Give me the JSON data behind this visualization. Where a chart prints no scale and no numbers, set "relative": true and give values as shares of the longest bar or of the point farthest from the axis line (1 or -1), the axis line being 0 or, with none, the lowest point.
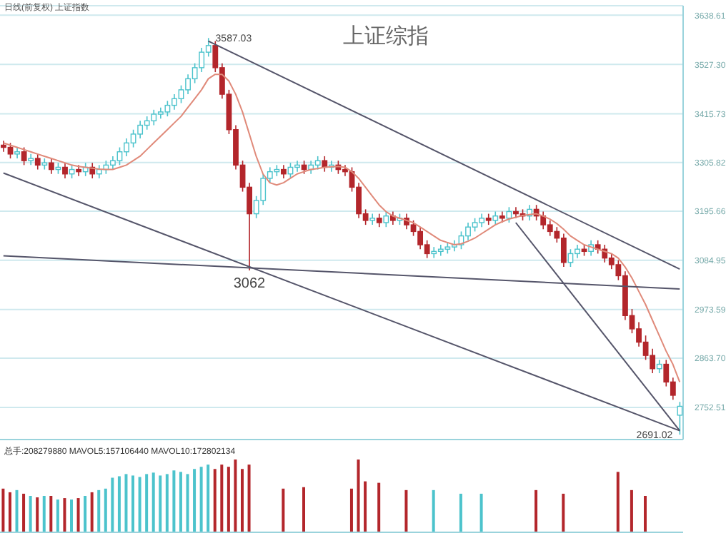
{
  "chart_data": [
    {
      "type": "candlestick",
      "title": "上证综指",
      "subtitle": "日线(前复权) 上证指数",
      "categories": [
        null,
        null,
        null,
        null,
        null,
        null,
        null,
        null,
        null,
        null,
        null,
        null,
        null,
        null,
        null,
        null,
        null,
        null,
        null,
        null,
        null,
        null,
        null,
        null,
        null,
        null,
        null,
        null,
        null,
        null,
        null,
        null,
        null,
        null,
        null,
        null,
        null,
        null,
        null,
        null,
        null,
        null,
        null,
        null,
        null,
        null,
        null,
        null,
        null,
        null,
        null,
        null,
        null,
        null,
        null,
        null,
        null,
        null,
        null,
        null,
        null,
        null,
        null,
        null,
        null,
        null,
        null,
        null,
        null,
        null,
        null,
        null,
        null,
        null,
        null,
        null,
        null,
        null,
        null,
        null,
        null,
        null,
        null,
        null,
        null,
        null,
        null,
        null,
        null,
        null,
        null,
        null,
        null,
        null,
        null,
        null,
        null,
        null,
        null,
        null
      ],
      "ohlc": [
        [
          3345,
          3355,
          3330,
          3340
        ],
        [
          3340,
          3350,
          3315,
          3325
        ],
        [
          3325,
          3340,
          3315,
          3330
        ],
        [
          3330,
          3340,
          3300,
          3310
        ],
        [
          3310,
          3325,
          3300,
          3315
        ],
        [
          3315,
          3325,
          3290,
          3300
        ],
        [
          3300,
          3315,
          3290,
          3305
        ],
        [
          3305,
          3315,
          3280,
          3290
        ],
        [
          3290,
          3305,
          3280,
          3295
        ],
        [
          3295,
          3305,
          3270,
          3280
        ],
        [
          3280,
          3300,
          3270,
          3290
        ],
        [
          3290,
          3300,
          3275,
          3285
        ],
        [
          3285,
          3305,
          3275,
          3295
        ],
        [
          3295,
          3305,
          3270,
          3280
        ],
        [
          3280,
          3300,
          3270,
          3290
        ],
        [
          3290,
          3310,
          3280,
          3300
        ],
        [
          3300,
          3320,
          3290,
          3310
        ],
        [
          3310,
          3340,
          3300,
          3330
        ],
        [
          3330,
          3360,
          3320,
          3350
        ],
        [
          3350,
          3380,
          3340,
          3370
        ],
        [
          3370,
          3400,
          3360,
          3390
        ],
        [
          3390,
          3410,
          3380,
          3400
        ],
        [
          3400,
          3425,
          3390,
          3415
        ],
        [
          3415,
          3430,
          3405,
          3420
        ],
        [
          3420,
          3445,
          3410,
          3435
        ],
        [
          3435,
          3460,
          3425,
          3450
        ],
        [
          3450,
          3480,
          3440,
          3470
        ],
        [
          3470,
          3505,
          3460,
          3495
        ],
        [
          3495,
          3530,
          3485,
          3520
        ],
        [
          3520,
          3565,
          3510,
          3555
        ],
        [
          3555,
          3587.03,
          3545,
          3570
        ],
        [
          3570,
          3580,
          3510,
          3520
        ],
        [
          3520,
          3530,
          3450,
          3460
        ],
        [
          3460,
          3470,
          3370,
          3380
        ],
        [
          3380,
          3390,
          3290,
          3300
        ],
        [
          3300,
          3310,
          3240,
          3250
        ],
        [
          3250,
          3260,
          3062,
          3190
        ],
        [
          3190,
          3230,
          3180,
          3220
        ],
        [
          3220,
          3280,
          3210,
          3270
        ],
        [
          3270,
          3295,
          3260,
          3285
        ],
        [
          3285,
          3300,
          3275,
          3290
        ],
        [
          3290,
          3300,
          3270,
          3280
        ],
        [
          3280,
          3305,
          3270,
          3295
        ],
        [
          3295,
          3310,
          3285,
          3300
        ],
        [
          3300,
          3310,
          3280,
          3290
        ],
        [
          3290,
          3310,
          3280,
          3300
        ],
        [
          3300,
          3320,
          3290,
          3310
        ],
        [
          3310,
          3320,
          3285,
          3295
        ],
        [
          3295,
          3310,
          3285,
          3300
        ],
        [
          3300,
          3310,
          3280,
          3290
        ],
        [
          3290,
          3300,
          3275,
          3285
        ],
        [
          3285,
          3295,
          3240,
          3250
        ],
        [
          3250,
          3260,
          3180,
          3190
        ],
        [
          3190,
          3200,
          3165,
          3175
        ],
        [
          3175,
          3190,
          3165,
          3180
        ],
        [
          3180,
          3190,
          3160,
          3170
        ],
        [
          3170,
          3195,
          3160,
          3185
        ],
        [
          3185,
          3195,
          3165,
          3175
        ],
        [
          3175,
          3190,
          3165,
          3180
        ],
        [
          3180,
          3190,
          3155,
          3165
        ],
        [
          3165,
          3175,
          3140,
          3150
        ],
        [
          3150,
          3160,
          3110,
          3120
        ],
        [
          3120,
          3130,
          3090,
          3100
        ],
        [
          3100,
          3115,
          3090,
          3105
        ],
        [
          3105,
          3120,
          3095,
          3110
        ],
        [
          3110,
          3125,
          3100,
          3115
        ],
        [
          3115,
          3130,
          3105,
          3120
        ],
        [
          3120,
          3150,
          3110,
          3140
        ],
        [
          3140,
          3170,
          3130,
          3160
        ],
        [
          3160,
          3180,
          3150,
          3170
        ],
        [
          3170,
          3190,
          3160,
          3180
        ],
        [
          3180,
          3190,
          3165,
          3175
        ],
        [
          3175,
          3195,
          3165,
          3185
        ],
        [
          3185,
          3195,
          3170,
          3180
        ],
        [
          3180,
          3205,
          3170,
          3195
        ],
        [
          3195,
          3205,
          3180,
          3190
        ],
        [
          3190,
          3200,
          3175,
          3185
        ],
        [
          3185,
          3210,
          3175,
          3200
        ],
        [
          3200,
          3210,
          3175,
          3185
        ],
        [
          3185,
          3195,
          3155,
          3165
        ],
        [
          3165,
          3175,
          3140,
          3150
        ],
        [
          3150,
          3160,
          3125,
          3135
        ],
        [
          3135,
          3145,
          3070,
          3080
        ],
        [
          3080,
          3110,
          3070,
          3100
        ],
        [
          3100,
          3120,
          3090,
          3110
        ],
        [
          3110,
          3120,
          3095,
          3105
        ],
        [
          3105,
          3130,
          3095,
          3120
        ],
        [
          3120,
          3130,
          3100,
          3110
        ],
        [
          3110,
          3120,
          3080,
          3090
        ],
        [
          3090,
          3100,
          3065,
          3075
        ],
        [
          3075,
          3085,
          3040,
          3050
        ],
        [
          3050,
          3060,
          2950,
          2960
        ],
        [
          2960,
          2975,
          2920,
          2930
        ],
        [
          2930,
          2945,
          2890,
          2900
        ],
        [
          2900,
          2915,
          2860,
          2870
        ],
        [
          2870,
          2885,
          2830,
          2840
        ],
        [
          2840,
          2860,
          2830,
          2850
        ],
        [
          2850,
          2860,
          2800,
          2810
        ],
        [
          2810,
          2820,
          2770,
          2780
        ],
        [
          2735,
          2765,
          2691.02,
          2755
        ]
      ],
      "colors": [
        "#b3262b",
        "#b3262b",
        "#4cc3cc",
        "#b3262b",
        "#4cc3cc",
        "#b3262b",
        "#4cc3cc",
        "#b3262b",
        "#4cc3cc",
        "#b3262b",
        "#4cc3cc",
        "#b3262b",
        "#4cc3cc",
        "#b3262b",
        "#4cc3cc",
        "#4cc3cc",
        "#4cc3cc",
        "#4cc3cc",
        "#4cc3cc",
        "#4cc3cc",
        "#4cc3cc",
        "#4cc3cc",
        "#4cc3cc",
        "#4cc3cc",
        "#4cc3cc",
        "#4cc3cc",
        "#4cc3cc",
        "#4cc3cc",
        "#4cc3cc",
        "#4cc3cc",
        "#4cc3cc",
        "#b3262b",
        "#b3262b",
        "#b3262b",
        "#b3262b",
        "#b3262b",
        "#b3262b",
        "#4cc3cc",
        "#4cc3cc",
        "#4cc3cc",
        "#4cc3cc",
        "#b3262b",
        "#4cc3cc",
        "#4cc3cc",
        "#b3262b",
        "#4cc3cc",
        "#4cc3cc",
        "#b3262b",
        "#4cc3cc",
        "#b3262b",
        "#b3262b",
        "#b3262b",
        "#b3262b",
        "#b3262b",
        "#4cc3cc",
        "#b3262b",
        "#4cc3cc",
        "#b3262b",
        "#4cc3cc",
        "#b3262b",
        "#b3262b",
        "#b3262b",
        "#b3262b",
        "#4cc3cc",
        "#4cc3cc",
        "#4cc3cc",
        "#4cc3cc",
        "#4cc3cc",
        "#4cc3cc",
        "#4cc3cc",
        "#4cc3cc",
        "#b3262b",
        "#4cc3cc",
        "#b3262b",
        "#4cc3cc",
        "#b3262b",
        "#b3262b",
        "#4cc3cc",
        "#b3262b",
        "#b3262b",
        "#b3262b",
        "#b3262b",
        "#b3262b",
        "#4cc3cc",
        "#4cc3cc",
        "#b3262b",
        "#4cc3cc",
        "#b3262b",
        "#b3262b",
        "#b3262b",
        "#b3262b",
        "#b3262b",
        "#b3262b",
        "#b3262b",
        "#b3262b",
        "#b3262b",
        "#4cc3cc",
        "#b3262b",
        "#b3262b",
        "#4cc3cc"
      ],
      "series": [
        {
          "type": "line",
          "color": "#e08a7a",
          "values": [
            3350,
            3345,
            3340,
            3335,
            3330,
            3325,
            3320,
            3315,
            3310,
            3305,
            3300,
            3297,
            3295,
            3293,
            3291,
            3290,
            3290,
            3295,
            3300,
            3310,
            3320,
            3335,
            3350,
            3365,
            3380,
            3395,
            3410,
            3430,
            3450,
            3470,
            3495,
            3505,
            3505,
            3490,
            3460,
            3420,
            3370,
            3320,
            3280,
            3260,
            3255,
            3260,
            3270,
            3280,
            3285,
            3290,
            3292,
            3295,
            3296,
            3297,
            3295,
            3285,
            3270,
            3250,
            3230,
            3210,
            3195,
            3185,
            3180,
            3175,
            3170,
            3160,
            3150,
            3140,
            3130,
            3125,
            3120,
            3122,
            3128,
            3135,
            3145,
            3155,
            3165,
            3172,
            3178,
            3182,
            3186,
            3188,
            3190,
            3185,
            3178,
            3168,
            3155,
            3140,
            3130,
            3120,
            3115,
            3110,
            3105,
            3100,
            3090,
            3070,
            3045,
            3015,
            2985,
            2950,
            2915,
            2880,
            2850,
            2810
          ]
        },
        {
          "type": "line",
          "color": "#55556a",
          "values": [
            null,
            null,
            null,
            null,
            null,
            null,
            null,
            null,
            null,
            null,
            null,
            null,
            null,
            null,
            null,
            null,
            null,
            null,
            null,
            null,
            null,
            null,
            null,
            null,
            null,
            null,
            null,
            null,
            null,
            null,
            3580,
            null,
            null,
            null,
            null,
            null,
            null,
            null,
            null,
            null,
            null,
            null,
            null,
            null,
            null,
            null,
            null,
            null,
            null,
            null,
            null,
            null,
            null,
            null,
            null,
            null,
            null,
            null,
            null,
            null,
            null,
            null,
            null,
            null,
            null,
            null,
            null,
            null,
            null,
            null,
            null,
            null,
            null,
            null,
            null,
            null,
            null,
            null,
            null,
            null,
            null,
            null,
            null,
            null,
            null,
            null,
            null,
            null,
            null,
            null,
            null,
            null,
            null,
            null,
            null,
            null,
            null,
            null,
            null,
            3065
          ]
        },
        {
          "type": "line",
          "color": "#55556a",
          "values": [
            3282,
            null,
            null,
            null,
            null,
            null,
            null,
            null,
            null,
            null,
            null,
            null,
            null,
            null,
            null,
            null,
            null,
            null,
            null,
            null,
            null,
            null,
            null,
            null,
            null,
            null,
            null,
            null,
            null,
            null,
            null,
            null,
            null,
            null,
            null,
            null,
            null,
            null,
            null,
            null,
            null,
            null,
            null,
            null,
            null,
            null,
            null,
            null,
            null,
            null,
            null,
            null,
            null,
            null,
            null,
            null,
            null,
            null,
            null,
            null,
            null,
            null,
            null,
            null,
            null,
            null,
            null,
            null,
            null,
            null,
            null,
            null,
            null,
            null,
            null,
            null,
            null,
            null,
            null,
            null,
            null,
            null,
            null,
            null,
            null,
            null,
            null,
            null,
            null,
            null,
            null,
            null,
            null,
            null,
            null,
            null,
            null,
            null,
            null,
            2700
          ]
        },
        {
          "type": "line",
          "color": "#55556a",
          "values": [
            3095,
            null,
            null,
            null,
            null,
            null,
            null,
            null,
            null,
            null,
            null,
            null,
            null,
            null,
            null,
            null,
            null,
            null,
            null,
            null,
            null,
            null,
            null,
            null,
            null,
            null,
            null,
            null,
            null,
            null,
            null,
            null,
            null,
            null,
            null,
            null,
            null,
            null,
            null,
            null,
            null,
            null,
            null,
            null,
            null,
            null,
            null,
            null,
            null,
            null,
            null,
            null,
            null,
            null,
            null,
            null,
            null,
            null,
            null,
            null,
            null,
            null,
            null,
            null,
            null,
            null,
            null,
            null,
            null,
            null,
            null,
            null,
            null,
            null,
            null,
            null,
            null,
            null,
            null,
            null,
            null,
            null,
            null,
            null,
            null,
            null,
            null,
            null,
            null,
            null,
            null,
            null,
            null,
            null,
            null,
            null,
            null,
            null,
            null,
            3020
          ]
        },
        {
          "type": "line",
          "color": "#55556a",
          "values": [
            null,
            null,
            null,
            null,
            null,
            null,
            null,
            null,
            null,
            null,
            null,
            null,
            null,
            null,
            null,
            null,
            null,
            null,
            null,
            null,
            null,
            null,
            null,
            null,
            null,
            null,
            null,
            null,
            null,
            null,
            null,
            null,
            null,
            null,
            null,
            null,
            null,
            null,
            null,
            null,
            null,
            null,
            null,
            null,
            null,
            null,
            null,
            null,
            null,
            null,
            null,
            null,
            null,
            null,
            null,
            null,
            null,
            null,
            null,
            null,
            null,
            null,
            null,
            null,
            null,
            null,
            null,
            null,
            null,
            null,
            null,
            null,
            null,
            null,
            null,
            3170,
            null,
            null,
            null,
            null,
            null,
            null,
            null,
            null,
            null,
            null,
            null,
            null,
            null,
            null,
            null,
            null,
            null,
            null,
            null,
            null,
            null,
            null,
            null,
            2700
          ]
        }
      ],
      "annotations": [
        "3587.03",
        {
          "text": "3062",
          "y": 3062
        },
        "2691.02"
      ],
      "ylim": [
        2680,
        3660
      ],
      "yticks": [
        3638.61,
        {
          "value": 3527.3,
          "label": "3527.30"
        },
        3415.73,
        3305.82,
        3195.66,
        3084.95,
        2973.59,
        {
          "value": 2863.7,
          "label": "2863.70"
        },
        2752.51
      ],
      "grid": "y",
      "tick_labels": "y"
    },
    {
      "type": "bar",
      "relative": true,
      "tick_labels": false,
      "annotations": [
        "总手:208279880 MAVOL5:157106440 MAVOL10:172802134"
      ],
      "categories": [
        null,
        null,
        null,
        null,
        null,
        null,
        null,
        null,
        null,
        null,
        null,
        null,
        null,
        null,
        null,
        null,
        null,
        null,
        null,
        null,
        null,
        null,
        null,
        null,
        null,
        null,
        null,
        null,
        null,
        null,
        null,
        null,
        null,
        null,
        null,
        null,
        null,
        null,
        null,
        null,
        null,
        null,
        null,
        null,
        null,
        null,
        null,
        null,
        null,
        null,
        null,
        null,
        null,
        null,
        null,
        null,
        null,
        null,
        null,
        null,
        null,
        null,
        null,
        null,
        null,
        null,
        null,
        null,
        null,
        null,
        null,
        null,
        null,
        null,
        null,
        null,
        null,
        null,
        null,
        null,
        null,
        null,
        null,
        null,
        null,
        null,
        null,
        null,
        null,
        null,
        null,
        null,
        null,
        null,
        null,
        null,
        null,
        null,
        null,
        null
      ],
      "values": [
        0.6,
        0.55,
        0.58,
        0.53,
        0.5,
        0.48,
        0.5,
        0.5,
        0.45,
        0.47,
        0.45,
        0.47,
        0.5,
        0.55,
        0.58,
        0.6,
        0.75,
        0.77,
        0.8,
        0.78,
        0.76,
        0.8,
        0.82,
        0.78,
        0.8,
        0.85,
        0.83,
        0.8,
        0.87,
        0.9,
        0.93,
        0.87,
        0.93,
        0.9,
        1,
        0.87,
        0.93,
        null,
        null,
        null,
        null,
        0.6,
        null,
        null,
        0.62,
        null,
        null,
        null,
        null,
        null,
        null,
        0.6,
        1,
        0.7,
        null,
        0.68,
        null,
        null,
        null,
        0.58,
        null,
        null,
        null,
        0.58,
        null,
        null,
        null,
        0.53,
        null,
        null,
        0.53,
        null,
        null,
        null,
        null,
        null,
        null,
        null,
        0.58,
        null,
        null,
        null,
        0.53,
        null,
        null,
        null,
        null,
        null,
        null,
        null,
        0.83,
        null,
        0.58,
        null,
        0.5,
        null,
        null,
        null,
        null,
        null
      ],
      "colors": [
        "#b3262b",
        "#b3262b",
        "#4cc3cc",
        "#b3262b",
        "#4cc3cc",
        "#b3262b",
        "#4cc3cc",
        "#b3262b",
        "#4cc3cc",
        "#b3262b",
        "#4cc3cc",
        "#b3262b",
        "#4cc3cc",
        "#b3262b",
        "#4cc3cc",
        "#4cc3cc",
        "#4cc3cc",
        "#4cc3cc",
        "#4cc3cc",
        "#4cc3cc",
        "#4cc3cc",
        "#4cc3cc",
        "#4cc3cc",
        "#4cc3cc",
        "#4cc3cc",
        "#4cc3cc",
        "#4cc3cc",
        "#4cc3cc",
        "#4cc3cc",
        "#4cc3cc",
        "#4cc3cc",
        "#b3262b",
        "#b3262b",
        "#b3262b",
        "#b3262b",
        "#b3262b",
        "#b3262b",
        "#4cc3cc",
        "#4cc3cc",
        "#4cc3cc",
        "#4cc3cc",
        "#b3262b",
        "#4cc3cc",
        "#4cc3cc",
        "#b3262b",
        "#4cc3cc",
        "#4cc3cc",
        "#b3262b",
        "#4cc3cc",
        "#b3262b",
        "#b3262b",
        "#b3262b",
        "#b3262b",
        "#b3262b",
        "#4cc3cc",
        "#b3262b",
        "#4cc3cc",
        "#b3262b",
        "#4cc3cc",
        "#b3262b",
        "#b3262b",
        "#b3262b",
        "#b3262b",
        "#4cc3cc",
        "#4cc3cc",
        "#4cc3cc",
        "#4cc3cc",
        "#4cc3cc",
        "#4cc3cc",
        "#4cc3cc",
        "#4cc3cc",
        "#b3262b",
        "#4cc3cc",
        "#b3262b",
        "#4cc3cc",
        "#b3262b",
        "#b3262b",
        "#4cc3cc",
        "#b3262b",
        "#b3262b",
        "#b3262b",
        "#b3262b",
        "#b3262b",
        "#4cc3cc",
        "#4cc3cc",
        "#b3262b",
        "#4cc3cc",
        "#b3262b",
        "#b3262b",
        "#b3262b",
        "#b3262b",
        "#b3262b",
        "#b3262b",
        "#b3262b",
        "#b3262b",
        "#b3262b",
        "#4cc3cc",
        "#b3262b",
        "#b3262b",
        "#4cc3cc"
      ]
    }
  ]
}
